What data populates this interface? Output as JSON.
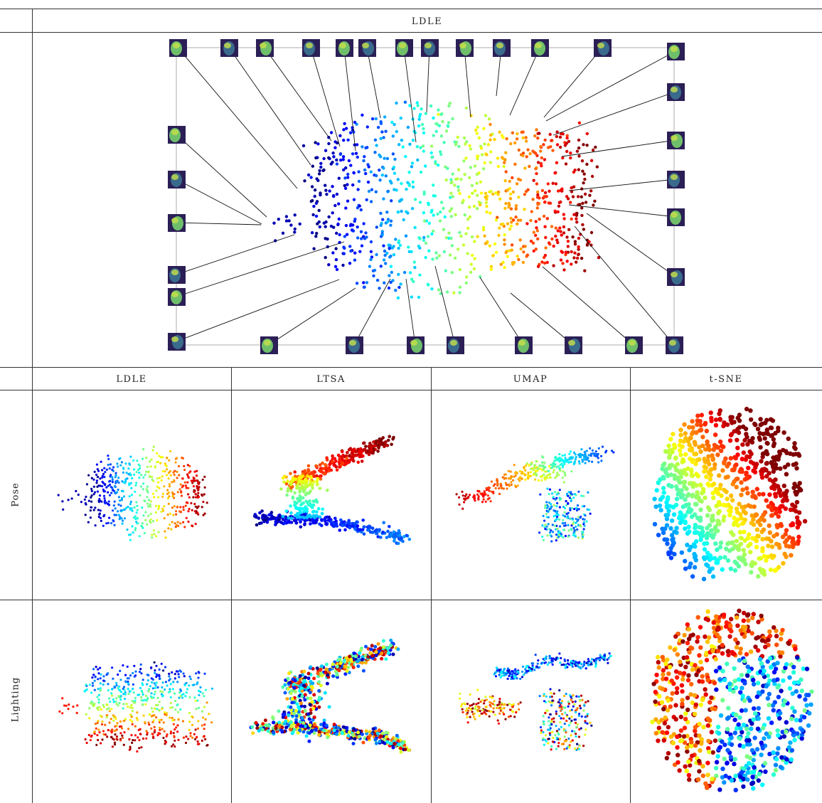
{
  "figure": {
    "top_header": "LDLE",
    "column_headers": [
      "LDLE",
      "LTSA",
      "UMAP",
      "t-SNE"
    ],
    "row_labels": [
      "Pose",
      "Lighting"
    ]
  },
  "colormap": [
    "#00007f",
    "#0000ff",
    "#007fff",
    "#00ffff",
    "#7fff7f",
    "#ffff00",
    "#ff7f00",
    "#ff0000",
    "#7f0000"
  ]
}
